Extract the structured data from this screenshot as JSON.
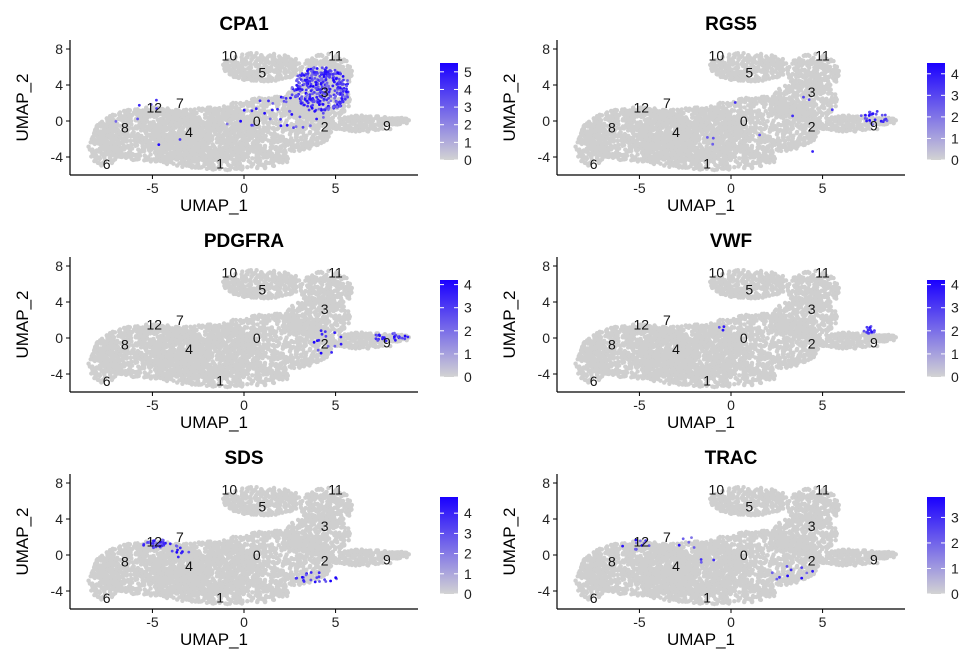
{
  "chart_data": [
    {
      "type": "scatter",
      "title": "CPA1",
      "xlabel": "UMAP_1",
      "ylabel": "UMAP_2",
      "xlim": [
        -9.5,
        9.5
      ],
      "ylim": [
        -6,
        9
      ],
      "xticks": [
        "-5",
        "0",
        "5"
      ],
      "yticks": [
        "8",
        "4",
        "0",
        "-4"
      ],
      "cluster_labels": [
        "0",
        "1",
        "2",
        "3",
        "4",
        "5",
        "6",
        "7",
        "8",
        "9",
        "10",
        "11",
        "12"
      ],
      "legend": {
        "ticks": [
          "5",
          "4",
          "3",
          "2",
          "1",
          "0"
        ],
        "max": 5.5,
        "low_color": "#d3d3d3",
        "high_color": "#1a00ff"
      },
      "highlight": [
        {
          "cx": 4.2,
          "cy": 3.5,
          "rx": 1.6,
          "ry": 2.5,
          "n": 320
        },
        {
          "cx": 2.0,
          "cy": 1.0,
          "rx": 2.5,
          "ry": 2.0,
          "n": 40
        },
        {
          "cx": -3.5,
          "cy": 0.0,
          "rx": 4.0,
          "ry": 3.0,
          "n": 10
        }
      ]
    },
    {
      "type": "scatter",
      "title": "RGS5",
      "xlabel": "UMAP_1",
      "ylabel": "UMAP_2",
      "xlim": [
        -9.5,
        9.5
      ],
      "ylim": [
        -6,
        9
      ],
      "xticks": [
        "-5",
        "0",
        "5"
      ],
      "yticks": [
        "8",
        "4",
        "0",
        "-4"
      ],
      "cluster_labels": [
        "0",
        "1",
        "2",
        "3",
        "4",
        "5",
        "6",
        "7",
        "8",
        "9",
        "10",
        "11",
        "12"
      ],
      "legend": {
        "ticks": [
          "4",
          "3",
          "2",
          "1",
          "0"
        ],
        "max": 4.5,
        "low_color": "#d3d3d3",
        "high_color": "#1a00ff"
      },
      "highlight": [
        {
          "cx": 7.8,
          "cy": 0.3,
          "rx": 0.8,
          "ry": 0.8,
          "n": 25
        },
        {
          "cx": 2.0,
          "cy": -0.5,
          "rx": 5.0,
          "ry": 3.5,
          "n": 10
        }
      ]
    },
    {
      "type": "scatter",
      "title": "PDGFRA",
      "xlabel": "UMAP_1",
      "ylabel": "UMAP_2",
      "xlim": [
        -9.5,
        9.5
      ],
      "ylim": [
        -6,
        9
      ],
      "xticks": [
        "-5",
        "0",
        "5"
      ],
      "yticks": [
        "8",
        "4",
        "0",
        "-4"
      ],
      "cluster_labels": [
        "0",
        "1",
        "2",
        "3",
        "4",
        "5",
        "6",
        "7",
        "8",
        "9",
        "10",
        "11",
        "12"
      ],
      "legend": {
        "ticks": [
          "4",
          "3",
          "2",
          "1",
          "0"
        ],
        "max": 4.2,
        "low_color": "#d3d3d3",
        "high_color": "#1a00ff"
      },
      "highlight": [
        {
          "cx": 8.0,
          "cy": 0.0,
          "rx": 1.0,
          "ry": 0.6,
          "n": 25
        },
        {
          "cx": 4.5,
          "cy": -0.5,
          "rx": 1.0,
          "ry": 1.5,
          "n": 15
        }
      ]
    },
    {
      "type": "scatter",
      "title": "VWF",
      "xlabel": "UMAP_1",
      "ylabel": "UMAP_2",
      "xlim": [
        -9.5,
        9.5
      ],
      "ylim": [
        -6,
        9
      ],
      "xticks": [
        "-5",
        "0",
        "5"
      ],
      "yticks": [
        "8",
        "4",
        "0",
        "-4"
      ],
      "cluster_labels": [
        "0",
        "1",
        "2",
        "3",
        "4",
        "5",
        "6",
        "7",
        "8",
        "9",
        "10",
        "11",
        "12"
      ],
      "legend": {
        "ticks": [
          "4",
          "3",
          "2",
          "1",
          "0"
        ],
        "max": 4.2,
        "low_color": "#d3d3d3",
        "high_color": "#1a00ff"
      },
      "highlight": [
        {
          "cx": 7.6,
          "cy": 0.9,
          "rx": 0.4,
          "ry": 0.4,
          "n": 20
        },
        {
          "cx": -0.5,
          "cy": 1.0,
          "rx": 0.3,
          "ry": 0.3,
          "n": 3
        }
      ]
    },
    {
      "type": "scatter",
      "title": "SDS",
      "xlabel": "UMAP_1",
      "ylabel": "UMAP_2",
      "xlim": [
        -9.5,
        9.5
      ],
      "ylim": [
        -6,
        9
      ],
      "xticks": [
        "-5",
        "0",
        "5"
      ],
      "yticks": [
        "8",
        "4",
        "0",
        "-4"
      ],
      "cluster_labels": [
        "0",
        "1",
        "2",
        "3",
        "4",
        "5",
        "6",
        "7",
        "8",
        "9",
        "10",
        "11",
        "12"
      ],
      "legend": {
        "ticks": [
          "4",
          "3",
          "2",
          "1",
          "0"
        ],
        "max": 4.8,
        "low_color": "#d3d3d3",
        "high_color": "#1a00ff"
      },
      "highlight": [
        {
          "cx": -4.8,
          "cy": 1.3,
          "rx": 0.8,
          "ry": 0.5,
          "n": 35
        },
        {
          "cx": -3.5,
          "cy": 0.5,
          "rx": 0.5,
          "ry": 0.8,
          "n": 10
        },
        {
          "cx": 4.0,
          "cy": -2.5,
          "rx": 1.2,
          "ry": 0.6,
          "n": 20
        }
      ]
    },
    {
      "type": "scatter",
      "title": "TRAC",
      "xlabel": "UMAP_1",
      "ylabel": "UMAP_2",
      "xlim": [
        -9.5,
        9.5
      ],
      "ylim": [
        -6,
        9
      ],
      "xticks": [
        "-5",
        "0",
        "5"
      ],
      "yticks": [
        "8",
        "4",
        "0",
        "-4"
      ],
      "cluster_labels": [
        "0",
        "1",
        "2",
        "3",
        "4",
        "5",
        "6",
        "7",
        "8",
        "9",
        "10",
        "11",
        "12"
      ],
      "legend": {
        "ticks": [
          "3",
          "2",
          "1",
          "0"
        ],
        "max": 3.8,
        "low_color": "#d3d3d3",
        "high_color": "#1a00ff"
      },
      "highlight": [
        {
          "cx": -5.0,
          "cy": 1.2,
          "rx": 1.0,
          "ry": 0.6,
          "n": 10
        },
        {
          "cx": -2.0,
          "cy": 0.5,
          "rx": 1.5,
          "ry": 1.5,
          "n": 8
        },
        {
          "cx": 3.5,
          "cy": -2.0,
          "rx": 1.5,
          "ry": 1.0,
          "n": 10
        }
      ]
    }
  ]
}
